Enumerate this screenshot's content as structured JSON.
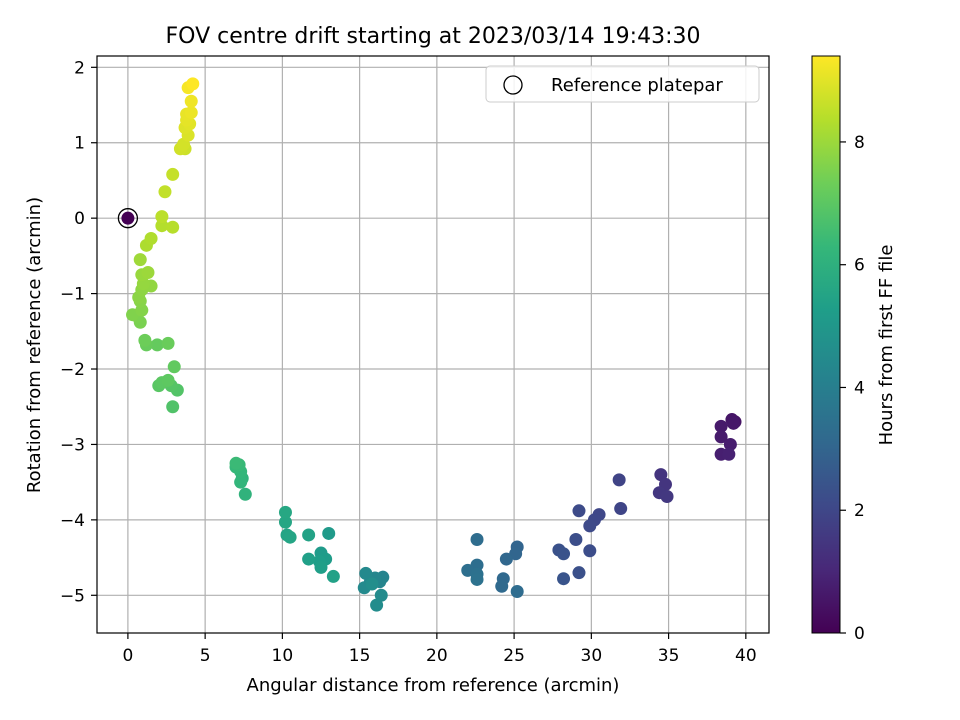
{
  "chart_data": {
    "type": "scatter",
    "title": "FOV centre drift starting at 2023/03/14 19:43:30",
    "xlabel": "Angular distance from reference (arcmin)",
    "ylabel": "Rotation from reference (arcmin)",
    "xlim": [
      -2,
      41.5
    ],
    "ylim": [
      -5.5,
      2.15
    ],
    "xticks": [
      "0",
      "5",
      "10",
      "15",
      "20",
      "25",
      "30",
      "35",
      "40"
    ],
    "yticks": [
      "−5",
      "−4",
      "−3",
      "−2",
      "−1",
      "0",
      "1",
      "2"
    ],
    "grid": true,
    "legend": {
      "placement": "top-right",
      "entries": [
        "Reference platepar"
      ]
    },
    "colorbar": {
      "label": "Hours from first FF file",
      "colormap": "viridis",
      "range": [
        0,
        9.4
      ],
      "ticks": [
        "0",
        "2",
        "4",
        "6",
        "8"
      ]
    },
    "reference": {
      "x": 0,
      "y": 0
    },
    "points": [
      [
        0,
        0,
        0.0
      ],
      [
        39.3,
        -2.7,
        0.5
      ],
      [
        39.1,
        -2.67,
        0.55
      ],
      [
        39.2,
        -2.72,
        0.6
      ],
      [
        38.4,
        -2.76,
        0.65
      ],
      [
        38.4,
        -2.9,
        0.7
      ],
      [
        39.0,
        -3.0,
        0.75
      ],
      [
        38.4,
        -3.13,
        0.8
      ],
      [
        38.9,
        -3.13,
        0.85
      ],
      [
        34.5,
        -3.4,
        1.4
      ],
      [
        34.8,
        -3.53,
        1.45
      ],
      [
        34.4,
        -3.64,
        1.5
      ],
      [
        34.9,
        -3.69,
        1.55
      ],
      [
        31.8,
        -3.47,
        1.9
      ],
      [
        31.9,
        -3.85,
        1.95
      ],
      [
        30.5,
        -3.93,
        2.0
      ],
      [
        30.2,
        -4.0,
        2.05
      ],
      [
        29.9,
        -4.08,
        2.1
      ],
      [
        29.2,
        -3.88,
        2.15
      ],
      [
        29.9,
        -4.41,
        2.2
      ],
      [
        29.0,
        -4.26,
        2.25
      ],
      [
        29.2,
        -4.7,
        2.3
      ],
      [
        27.9,
        -4.4,
        2.35
      ],
      [
        28.2,
        -4.45,
        2.4
      ],
      [
        28.2,
        -4.78,
        2.45
      ],
      [
        25.2,
        -4.36,
        3.0
      ],
      [
        25.1,
        -4.45,
        3.05
      ],
      [
        24.5,
        -4.52,
        3.1
      ],
      [
        24.3,
        -4.78,
        3.15
      ],
      [
        24.2,
        -4.88,
        3.2
      ],
      [
        25.2,
        -4.95,
        3.25
      ],
      [
        22.6,
        -4.26,
        3.3
      ],
      [
        22.6,
        -4.6,
        3.35
      ],
      [
        22.0,
        -4.67,
        3.4
      ],
      [
        22.6,
        -4.72,
        3.45
      ],
      [
        22.6,
        -4.79,
        3.5
      ],
      [
        16.5,
        -4.76,
        4.2
      ],
      [
        16.3,
        -4.82,
        4.25
      ],
      [
        16.0,
        -4.77,
        4.3
      ],
      [
        15.7,
        -4.82,
        4.35
      ],
      [
        15.4,
        -4.71,
        4.4
      ],
      [
        15.3,
        -4.9,
        4.45
      ],
      [
        16.4,
        -5.0,
        4.5
      ],
      [
        16.1,
        -5.13,
        4.55
      ],
      [
        15.8,
        -4.85,
        4.6
      ],
      [
        13.0,
        -4.18,
        5.1
      ],
      [
        12.5,
        -4.44,
        5.15
      ],
      [
        12.8,
        -4.52,
        5.2
      ],
      [
        12.4,
        -4.55,
        5.25
      ],
      [
        12.5,
        -4.63,
        5.3
      ],
      [
        11.7,
        -4.52,
        5.35
      ],
      [
        13.3,
        -4.75,
        5.4
      ],
      [
        11.7,
        -4.2,
        5.45
      ],
      [
        10.3,
        -4.2,
        5.5
      ],
      [
        10.5,
        -4.23,
        5.55
      ],
      [
        10.2,
        -4.03,
        5.6
      ],
      [
        10.2,
        -3.9,
        5.65
      ],
      [
        7.6,
        -3.66,
        6.1
      ],
      [
        7.4,
        -3.45,
        6.15
      ],
      [
        7.3,
        -3.5,
        6.2
      ],
      [
        7.3,
        -3.36,
        6.25
      ],
      [
        7.0,
        -3.3,
        6.3
      ],
      [
        7.2,
        -3.27,
        6.35
      ],
      [
        7.0,
        -3.25,
        6.4
      ],
      [
        2.9,
        -2.5,
        6.8
      ],
      [
        3.2,
        -2.28,
        6.85
      ],
      [
        2.8,
        -2.22,
        6.9
      ],
      [
        2.0,
        -2.22,
        6.95
      ],
      [
        2.2,
        -2.18,
        7.0
      ],
      [
        2.6,
        -2.15,
        7.05
      ],
      [
        3.0,
        -1.97,
        7.1
      ],
      [
        1.9,
        -1.68,
        7.15
      ],
      [
        1.2,
        -1.68,
        7.2
      ],
      [
        2.6,
        -1.66,
        7.25
      ],
      [
        1.1,
        -1.62,
        7.3
      ],
      [
        0.8,
        -1.38,
        7.5
      ],
      [
        0.6,
        -1.3,
        7.55
      ],
      [
        0.3,
        -1.28,
        7.6
      ],
      [
        0.9,
        -1.22,
        7.65
      ],
      [
        0.8,
        -1.1,
        7.7
      ],
      [
        0.7,
        -1.05,
        7.75
      ],
      [
        0.9,
        -0.95,
        7.8
      ],
      [
        1.5,
        -0.9,
        7.85
      ],
      [
        1.0,
        -0.87,
        7.9
      ],
      [
        0.9,
        -0.75,
        7.95
      ],
      [
        1.3,
        -0.72,
        8.0
      ],
      [
        0.8,
        -0.55,
        8.05
      ],
      [
        1.2,
        -0.36,
        8.25
      ],
      [
        1.5,
        -0.27,
        8.3
      ],
      [
        2.2,
        -0.1,
        8.35
      ],
      [
        2.9,
        -0.12,
        8.4
      ],
      [
        2.2,
        0.02,
        8.45
      ],
      [
        2.4,
        0.35,
        8.55
      ],
      [
        2.9,
        0.58,
        8.6
      ],
      [
        3.7,
        0.92,
        8.7
      ],
      [
        3.4,
        0.92,
        8.75
      ],
      [
        3.6,
        0.98,
        8.8
      ],
      [
        3.9,
        1.1,
        8.9
      ],
      [
        3.7,
        1.2,
        8.95
      ],
      [
        4.0,
        1.25,
        9.0
      ],
      [
        3.8,
        1.3,
        9.05
      ],
      [
        3.8,
        1.38,
        9.1
      ],
      [
        4.1,
        1.4,
        9.15
      ],
      [
        4.1,
        1.55,
        9.2
      ],
      [
        3.9,
        1.73,
        9.3
      ],
      [
        4.2,
        1.78,
        9.4
      ]
    ]
  }
}
